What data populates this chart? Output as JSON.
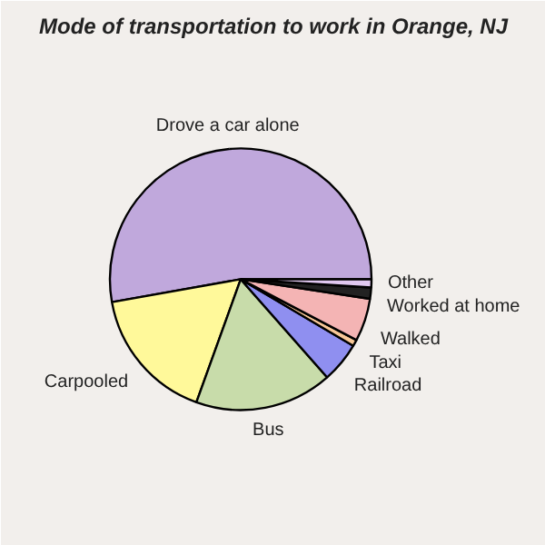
{
  "chart_data": {
    "type": "pie",
    "title": "Mode of transportation to work in Orange, NJ",
    "categories": [
      "Drove a car alone",
      "Carpooled",
      "Bus",
      "Railroad",
      "Taxi",
      "Walked",
      "Worked at home",
      "Other"
    ],
    "values": [
      52.8,
      16.7,
      17,
      5,
      0.8,
      5.3,
      1.4,
      1
    ],
    "colors": [
      "#c0a8dc",
      "#fff99a",
      "#c8dcaa",
      "#8f8ff0",
      "#f8c898",
      "#f4b4b4",
      "#222222",
      "#e0c8f0"
    ]
  }
}
